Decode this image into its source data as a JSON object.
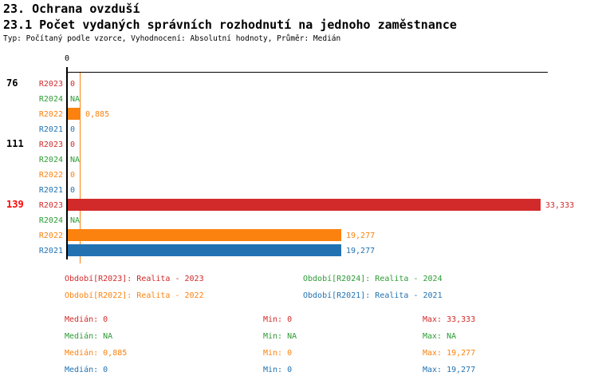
{
  "header": {
    "title": "23. Ochrana ovzduší",
    "subtitle": "23.1 Počet vydaných správních rozhodnutí na jednoho zaměstnance",
    "meta": "Typ: Počítaný podle vzorce, Vyhodnocení: Absolutní hodnoty, Průměr: Medián"
  },
  "colors": {
    "black": "#000000",
    "red": "#d22a2a",
    "bright_red": "#ff0000",
    "orange": "#fc820f",
    "green": "#2d9b35",
    "blue": "#2272b2"
  },
  "chart_data": {
    "type": "bar",
    "orientation": "horizontal",
    "title": "23.1 Počet vydaných správních rozhodnutí na jednoho zaměstnance",
    "axis": {
      "tick_label": "0",
      "xlim": [
        0,
        33.333
      ]
    },
    "median_line": {
      "value": 0.885,
      "color_key": "orange"
    },
    "series_colors": {
      "R2023": "red",
      "R2024": "green",
      "R2022": "orange",
      "R2021": "blue"
    },
    "groups": [
      {
        "label": "76",
        "label_color": "black",
        "rows": [
          {
            "series": "R2023",
            "value": 0,
            "display": "0",
            "bar": false
          },
          {
            "series": "R2024",
            "value": null,
            "display": "NA",
            "bar": false
          },
          {
            "series": "R2022",
            "value": 0.885,
            "display": "0,885",
            "bar": true
          },
          {
            "series": "R2021",
            "value": 0,
            "display": "0",
            "bar": false
          }
        ]
      },
      {
        "label": "111",
        "label_color": "black",
        "rows": [
          {
            "series": "R2023",
            "value": 0,
            "display": "0",
            "bar": false
          },
          {
            "series": "R2024",
            "value": null,
            "display": "NA",
            "bar": false
          },
          {
            "series": "R2022",
            "value": 0,
            "display": "0",
            "bar": false
          },
          {
            "series": "R2021",
            "value": 0,
            "display": "0",
            "bar": false
          }
        ]
      },
      {
        "label": "139",
        "label_color": "bright_red",
        "rows": [
          {
            "series": "R2023",
            "value": 33.333,
            "display": "33,333",
            "bar": true
          },
          {
            "series": "R2024",
            "value": null,
            "display": "NA",
            "bar": false
          },
          {
            "series": "R2022",
            "value": 19.277,
            "display": "19,277",
            "bar": true
          },
          {
            "series": "R2021",
            "value": 19.277,
            "display": "19,277",
            "bar": true
          }
        ]
      }
    ]
  },
  "legend": {
    "items": [
      {
        "text": "Období[R2023]: Realita - 2023",
        "color": "red"
      },
      {
        "text": "Období[R2024]: Realita - 2024",
        "color": "green"
      },
      {
        "text": "Období[R2022]: Realita - 2022",
        "color": "orange"
      },
      {
        "text": "Období[R2021]: Realita - 2021",
        "color": "blue"
      }
    ]
  },
  "stats": {
    "median_label": "Medián",
    "min_label": "Min",
    "max_label": "Max",
    "rows": [
      {
        "color": "red",
        "median": "0",
        "min": "0",
        "max": "33,333"
      },
      {
        "color": "green",
        "median": "NA",
        "min": "NA",
        "max": "NA"
      },
      {
        "color": "orange",
        "median": "0,885",
        "min": "0",
        "max": "19,277"
      },
      {
        "color": "blue",
        "median": "0",
        "min": "0",
        "max": "19,277"
      }
    ]
  }
}
